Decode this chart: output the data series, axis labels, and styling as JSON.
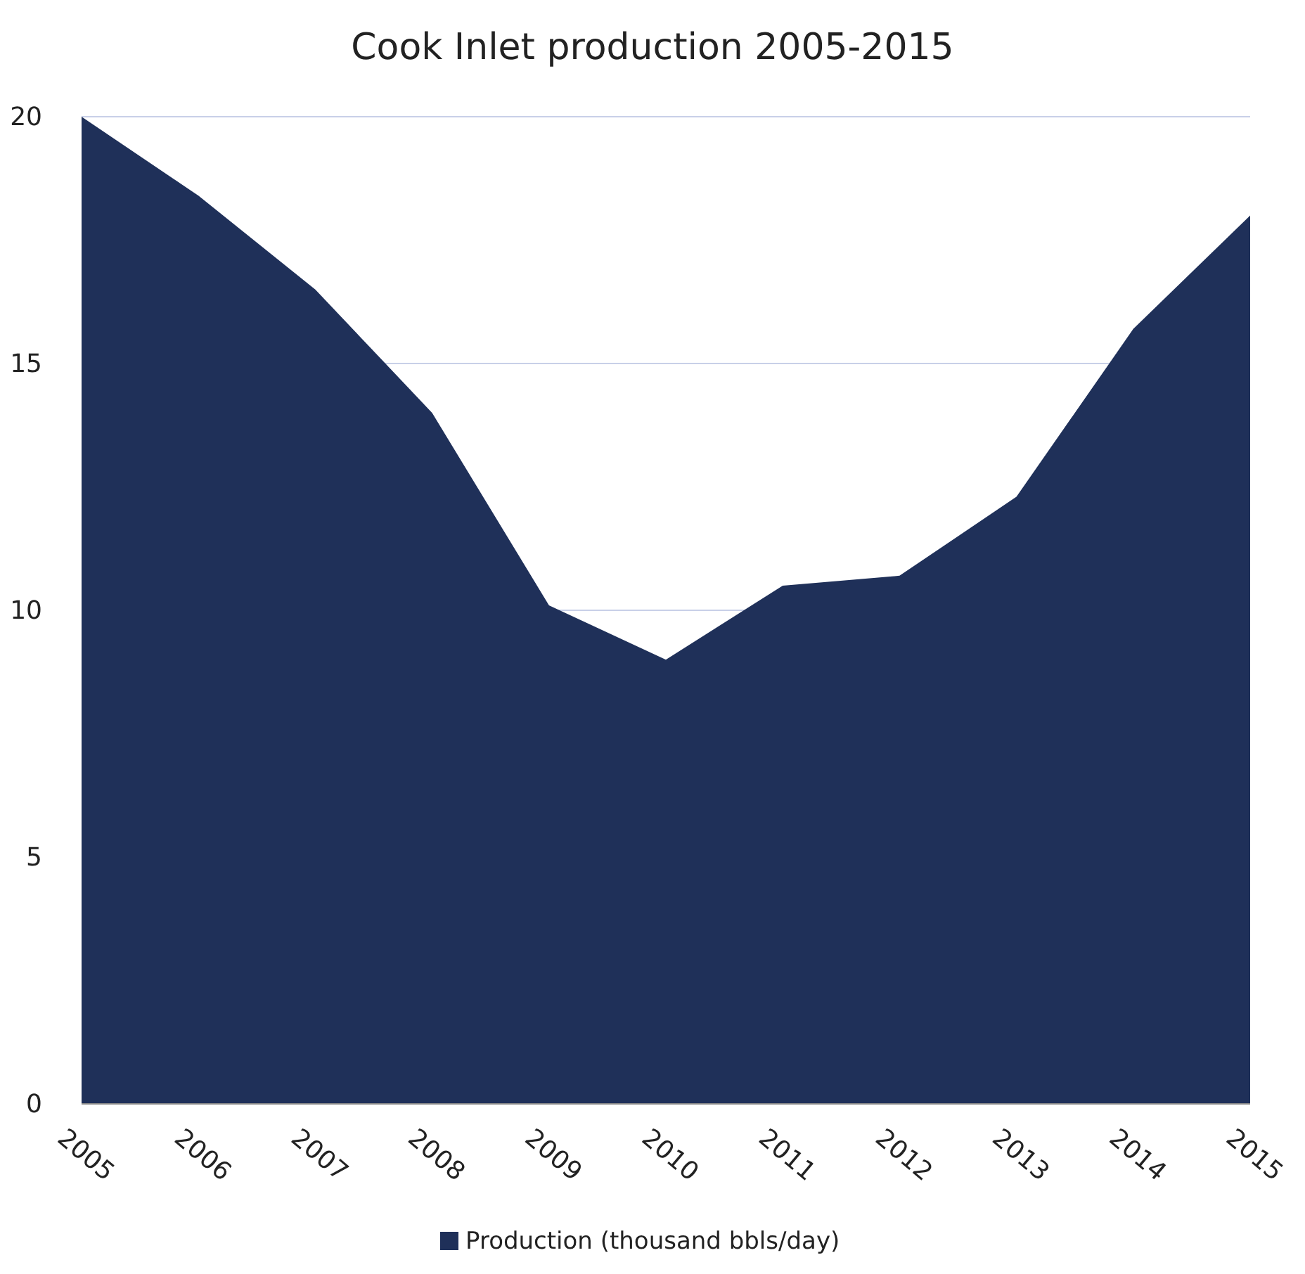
{
  "chart_data": {
    "type": "area",
    "title": "Cook Inlet production 2005-2015",
    "categories": [
      "2005",
      "2006",
      "2007",
      "2008",
      "2009",
      "2010",
      "2011",
      "2012",
      "2013",
      "2014",
      "2015"
    ],
    "series": [
      {
        "name": "Production (thousand bbls/day)",
        "color": "#1f3059",
        "values": [
          20,
          18.4,
          16.5,
          14.0,
          10.1,
          9.0,
          10.5,
          10.7,
          12.3,
          15.7,
          18.0
        ]
      }
    ],
    "ylim": [
      0,
      20
    ],
    "yticks": [
      0,
      5,
      10,
      15,
      20
    ],
    "grid": "y",
    "legend": "bottom"
  }
}
